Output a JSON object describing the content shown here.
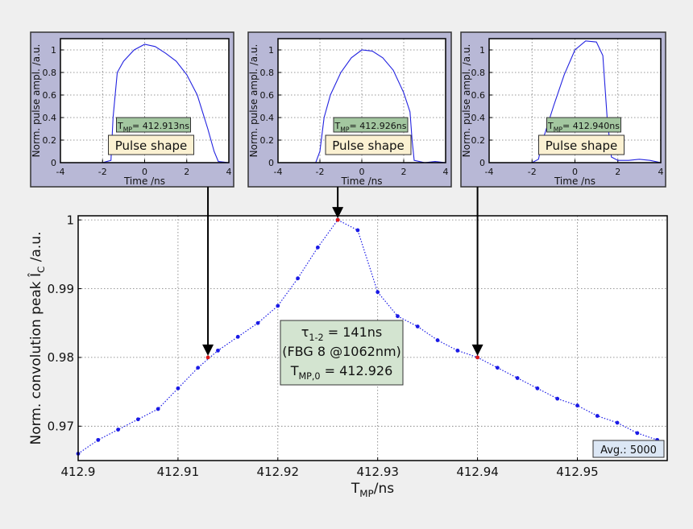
{
  "chart_data": [
    {
      "type": "line",
      "xlabel": [
        {
          "text": "T"
        },
        {
          "text": "MP",
          "sub": true
        },
        {
          "text": "/ns"
        }
      ],
      "ylabel": [
        {
          "text": "Norm. convolution peak Î"
        },
        {
          "text": "C",
          "sub": true
        },
        {
          "text": " /a.u."
        }
      ],
      "series": [
        {
          "color": "#1a1ae6",
          "marker": "dot",
          "linestyle": "dotted",
          "x": [
            412.9,
            412.902,
            412.904,
            412.906,
            412.908,
            412.91,
            412.912,
            412.914,
            412.916,
            412.918,
            412.92,
            412.922,
            412.924,
            412.926,
            412.928,
            412.93,
            412.932,
            412.934,
            412.936,
            412.938,
            412.94,
            412.942,
            412.944,
            412.946,
            412.948,
            412.95,
            412.952,
            412.954,
            412.956,
            412.958
          ],
          "values": [
            0.966,
            0.968,
            0.9695,
            0.971,
            0.9725,
            0.9755,
            0.9785,
            0.981,
            0.983,
            0.985,
            0.9875,
            0.9915,
            0.996,
            1.0,
            0.9985,
            0.9895,
            0.986,
            0.9845,
            0.9825,
            0.981,
            0.98,
            0.9785,
            0.977,
            0.9755,
            0.974,
            0.973,
            0.9715,
            0.9705,
            0.969,
            0.968
          ]
        },
        {
          "color": "#e01818",
          "marker": "dot",
          "linestyle": "none",
          "x": [
            412.913,
            412.926,
            412.94
          ],
          "values": [
            0.98,
            1.0,
            0.98
          ]
        }
      ],
      "xlim": [
        412.9,
        412.959
      ],
      "ylim": [
        0.965,
        1.0006
      ],
      "xticks": [
        412.9,
        412.91,
        412.92,
        412.93,
        412.94,
        412.95
      ],
      "yticks": [
        0.97,
        0.98,
        0.99,
        1
      ],
      "grid": true,
      "annotation": [
        [
          {
            "text": "τ"
          },
          {
            "text": "1-2",
            "sub": true
          },
          {
            "text": " = 141ns"
          }
        ],
        [
          {
            "text": "(FBG 8 @1062nm)"
          }
        ],
        [
          {
            "text": "T"
          },
          {
            "text": "MP,0",
            "sub": true
          },
          {
            "text": " = 412.926"
          }
        ]
      ],
      "note": "Avg.: 5000"
    },
    {
      "type": "line",
      "xlabel": "Time /ns",
      "ylabel": "Norm. pulse ampl. /a.u.",
      "series": [
        {
          "color": "#2323e0",
          "x": [
            -4,
            -3,
            -2,
            -1.6,
            -1.5,
            -1.3,
            -1,
            -0.5,
            0,
            0.5,
            1,
            1.5,
            2,
            2.5,
            3,
            3.3,
            3.5,
            4
          ],
          "values": [
            0,
            0,
            0,
            0.02,
            0.4,
            0.8,
            0.9,
            1.0,
            1.05,
            1.03,
            0.97,
            0.9,
            0.78,
            0.6,
            0.3,
            0.1,
            0.01,
            0
          ]
        }
      ],
      "xlim": [
        -4,
        4
      ],
      "ylim": [
        0,
        1.1
      ],
      "xticks": [
        -4,
        -2,
        0,
        2,
        4
      ],
      "yticks": [
        0,
        0.2,
        0.4,
        0.6,
        0.8,
        1
      ],
      "grid": true,
      "tag": [
        {
          "text": "T"
        },
        {
          "text": "MP",
          "sub": true
        },
        {
          "text": "= 412.913ns"
        }
      ],
      "label": "Pulse shape"
    },
    {
      "type": "line",
      "xlabel": "Time /ns",
      "ylabel": "Norm. pulse ampl. /a.u.",
      "series": [
        {
          "color": "#2323e0",
          "x": [
            -4,
            -3,
            -2.2,
            -2,
            -1.8,
            -1.5,
            -1,
            -0.5,
            0,
            0.5,
            1,
            1.5,
            2,
            2.3,
            2.4,
            2.5,
            3,
            3.5,
            4
          ],
          "values": [
            0,
            0,
            0,
            0.1,
            0.4,
            0.6,
            0.8,
            0.93,
            1.0,
            0.99,
            0.93,
            0.82,
            0.62,
            0.45,
            0.2,
            0.02,
            0,
            0.01,
            0
          ]
        }
      ],
      "xlim": [
        -4,
        4
      ],
      "ylim": [
        0,
        1.1
      ],
      "xticks": [
        -4,
        -2,
        0,
        2,
        4
      ],
      "yticks": [
        0,
        0.2,
        0.4,
        0.6,
        0.8,
        1
      ],
      "grid": true,
      "tag": [
        {
          "text": "T"
        },
        {
          "text": "MP",
          "sub": true
        },
        {
          "text": "= 412.926ns"
        }
      ],
      "label": "Pulse shape"
    },
    {
      "type": "line",
      "xlabel": "Time /ns",
      "ylabel": "Norm. pulse ampl. /a.u.",
      "series": [
        {
          "color": "#2323e0",
          "x": [
            -4,
            -3,
            -2,
            -1.7,
            -1.5,
            -1,
            -0.5,
            0,
            0.5,
            1,
            1.3,
            1.5,
            1.7,
            2,
            2.5,
            3,
            3.5,
            4
          ],
          "values": [
            0,
            0,
            0,
            0.03,
            0.2,
            0.5,
            0.78,
            1.0,
            1.08,
            1.07,
            0.95,
            0.4,
            0.05,
            0.02,
            0.02,
            0.03,
            0.02,
            0
          ]
        }
      ],
      "xlim": [
        -4,
        4
      ],
      "ylim": [
        0,
        1.1
      ],
      "xticks": [
        -4,
        -2,
        0,
        2,
        4
      ],
      "yticks": [
        0,
        0.2,
        0.4,
        0.6,
        0.8,
        1
      ],
      "grid": true,
      "tag": [
        {
          "text": "T"
        },
        {
          "text": "MP",
          "sub": true
        },
        {
          "text": "= 412.940ns"
        }
      ],
      "label": "Pulse shape"
    }
  ]
}
